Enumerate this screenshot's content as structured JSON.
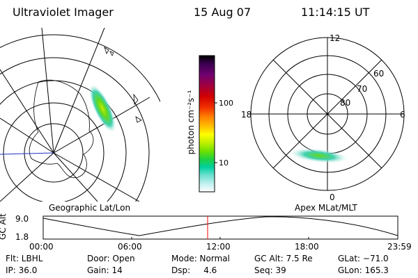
{
  "header": {
    "title": "Ultraviolet Imager",
    "date": "15 Aug 07",
    "time": "11:14:15 UT"
  },
  "colorbar": {
    "unit_label": "photon cm⁻²s⁻¹",
    "ticks": [
      "100",
      "10"
    ],
    "stops": [
      "#000000",
      "#3a0050",
      "#700070",
      "#a00040",
      "#d00000",
      "#f03000",
      "#ff8000",
      "#ffc000",
      "#ffff00",
      "#c0f000",
      "#70e000",
      "#20d040",
      "#00d0a0",
      "#70e0d0",
      "#c0f0f0",
      "#ffffff"
    ]
  },
  "left_panel": {
    "label": "Geographic Lat/Lon"
  },
  "right_panel": {
    "label": "Apex  MLat/MLT",
    "mlt_labels": {
      "top": "12",
      "left": "18",
      "right": "6",
      "bottom": "0"
    },
    "mlat_labels": [
      "60",
      "70",
      "80"
    ]
  },
  "timeline": {
    "axis_label": "GC Alt",
    "y_max": "9.0",
    "y_min": "1.8",
    "x_ticks": [
      "00:00",
      "06:00",
      "12:00",
      "18:00",
      "23:59"
    ],
    "marker_color": "#ff0000"
  },
  "info": {
    "filter": "Flt: LBHL",
    "door": "Door: Open",
    "mode": "Mode: Normal",
    "gc_alt": "GC Alt: 7.5 Re",
    "glat": "GLat: −71.0",
    "ip": "IP: 36.0",
    "gain": "Gain: 14",
    "dsp": "Dsp:     4.6",
    "seq": "Seq: 39",
    "glon": "GLon: 165.3"
  }
}
